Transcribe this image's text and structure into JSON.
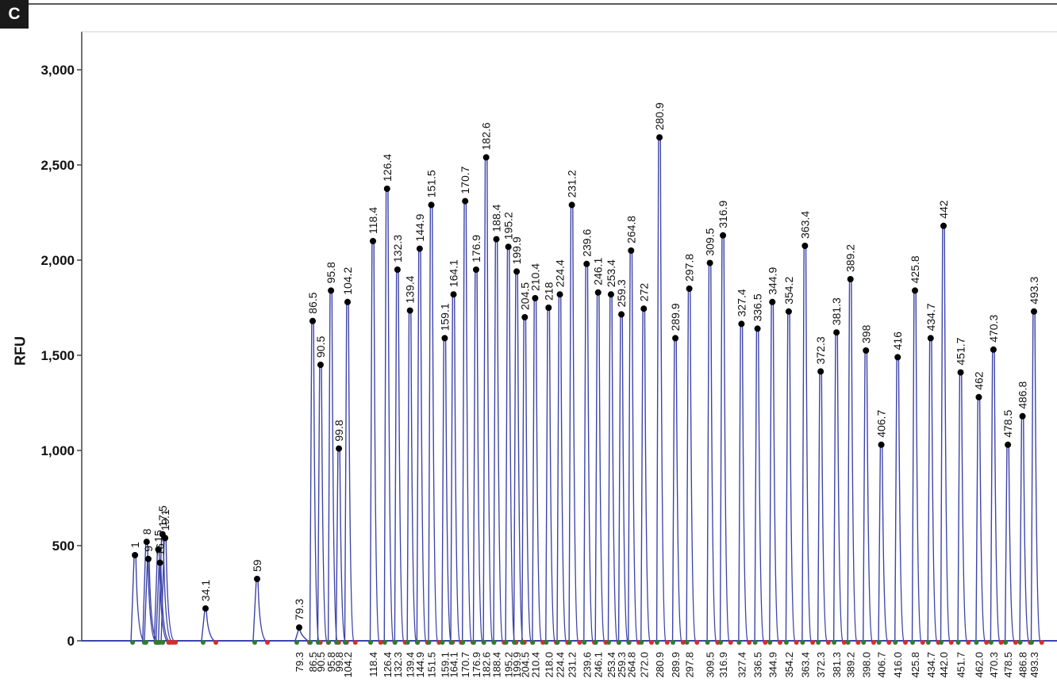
{
  "panel_label": "C",
  "chart_data": {
    "type": "line",
    "ylabel": "RFU",
    "ylim": [
      0,
      3000
    ],
    "yticks": [
      0,
      500,
      1000,
      1500,
      2000,
      2500,
      3000
    ],
    "ytick_labels": [
      "0",
      "500",
      "1,000",
      "1,500",
      "2,000",
      "2,500",
      "3,000"
    ],
    "grid": false,
    "peak_color": "#3d44a8",
    "peaks": [
      {
        "label": "1",
        "x": 1,
        "y": 450
      },
      {
        "label": "8",
        "x": 8,
        "y": 520
      },
      {
        "label": "9",
        "x": 9,
        "y": 430
      },
      {
        "label": "15",
        "x": 15,
        "y": 480
      },
      {
        "label": "16",
        "x": 16,
        "y": 410
      },
      {
        "label": "17.5",
        "x": 17.5,
        "y": 560
      },
      {
        "label": "19.1",
        "x": 19.1,
        "y": 540
      },
      {
        "label": "34.1",
        "x": 34.1,
        "y": 170
      },
      {
        "label": "59",
        "x": 59,
        "y": 325
      },
      {
        "label": "79.3",
        "x": 79.3,
        "y": 70
      },
      {
        "label": "86.5",
        "x": 86.5,
        "y": 1680
      },
      {
        "label": "90.5",
        "x": 90.5,
        "y": 1450
      },
      {
        "label": "95.8",
        "x": 95.8,
        "y": 1840
      },
      {
        "label": "99.8",
        "x": 99.8,
        "y": 1010
      },
      {
        "label": "104.2",
        "x": 104.2,
        "y": 1780
      },
      {
        "label": "118.4",
        "x": 118.4,
        "y": 2100
      },
      {
        "label": "126.4",
        "x": 126.4,
        "y": 2375
      },
      {
        "label": "132.3",
        "x": 132.3,
        "y": 1950
      },
      {
        "label": "139.4",
        "x": 139.4,
        "y": 1735
      },
      {
        "label": "144.9",
        "x": 144.9,
        "y": 2060
      },
      {
        "label": "151.5",
        "x": 151.5,
        "y": 2290
      },
      {
        "label": "159.1",
        "x": 159.1,
        "y": 1590
      },
      {
        "label": "164.1",
        "x": 164.1,
        "y": 1820
      },
      {
        "label": "170.7",
        "x": 170.7,
        "y": 2310
      },
      {
        "label": "176.9",
        "x": 176.9,
        "y": 1950
      },
      {
        "label": "182.6",
        "x": 182.6,
        "y": 2540
      },
      {
        "label": "188.4",
        "x": 188.4,
        "y": 2110
      },
      {
        "label": "195.2",
        "x": 195.2,
        "y": 2070
      },
      {
        "label": "199.9",
        "x": 199.9,
        "y": 1940
      },
      {
        "label": "204.5",
        "x": 204.5,
        "y": 1700
      },
      {
        "label": "210.4",
        "x": 210.4,
        "y": 1800
      },
      {
        "label": "218",
        "x": 218,
        "y": 1750
      },
      {
        "label": "224.4",
        "x": 224.4,
        "y": 1820
      },
      {
        "label": "231.2",
        "x": 231.2,
        "y": 2290
      },
      {
        "label": "239.6",
        "x": 239.6,
        "y": 1980
      },
      {
        "label": "246.1",
        "x": 246.1,
        "y": 1830
      },
      {
        "label": "253.4",
        "x": 253.4,
        "y": 1820
      },
      {
        "label": "259.3",
        "x": 259.3,
        "y": 1715
      },
      {
        "label": "264.8",
        "x": 264.8,
        "y": 2050
      },
      {
        "label": "272",
        "x": 272,
        "y": 1745
      },
      {
        "label": "280.9",
        "x": 280.9,
        "y": 2645
      },
      {
        "label": "289.9",
        "x": 289.9,
        "y": 1590
      },
      {
        "label": "297.8",
        "x": 297.8,
        "y": 1850
      },
      {
        "label": "309.5",
        "x": 309.5,
        "y": 1985
      },
      {
        "label": "316.9",
        "x": 316.9,
        "y": 2130
      },
      {
        "label": "327.4",
        "x": 327.4,
        "y": 1665
      },
      {
        "label": "336.5",
        "x": 336.5,
        "y": 1640
      },
      {
        "label": "344.9",
        "x": 344.9,
        "y": 1780
      },
      {
        "label": "354.2",
        "x": 354.2,
        "y": 1730
      },
      {
        "label": "363.4",
        "x": 363.4,
        "y": 2075
      },
      {
        "label": "372.3",
        "x": 372.3,
        "y": 1415
      },
      {
        "label": "381.3",
        "x": 381.3,
        "y": 1620
      },
      {
        "label": "389.2",
        "x": 389.2,
        "y": 1900
      },
      {
        "label": "398",
        "x": 398,
        "y": 1525
      },
      {
        "label": "406.7",
        "x": 406.7,
        "y": 1030
      },
      {
        "label": "416",
        "x": 416,
        "y": 1490
      },
      {
        "label": "425.8",
        "x": 425.8,
        "y": 1840
      },
      {
        "label": "434.7",
        "x": 434.7,
        "y": 1590
      },
      {
        "label": "442",
        "x": 442,
        "y": 2180
      },
      {
        "label": "451.7",
        "x": 451.7,
        "y": 1410
      },
      {
        "label": "462",
        "x": 462,
        "y": 1280
      },
      {
        "label": "470.3",
        "x": 470.3,
        "y": 1530
      },
      {
        "label": "478.5",
        "x": 478.5,
        "y": 1030
      },
      {
        "label": "486.8",
        "x": 486.8,
        "y": 1180
      },
      {
        "label": "493.3",
        "x": 493.3,
        "y": 1730
      }
    ],
    "x_tick_labels": [
      "79.3",
      "86.5",
      "90.5",
      "95.8",
      "99.8",
      "104.2",
      "118.4",
      "126.4",
      "132.3",
      "139.4",
      "144.9",
      "151.5",
      "159.1",
      "164.1",
      "170.7",
      "176.9",
      "182.6",
      "188.4",
      "195.2",
      "199.9",
      "204.5",
      "210.4",
      "218.0",
      "224.4",
      "231.2",
      "239.6",
      "246.1",
      "253.4",
      "259.3",
      "264.8",
      "272.0",
      "280.9",
      "289.9",
      "297.8",
      "309.5",
      "316.9",
      "327.4",
      "336.5",
      "344.9",
      "354.2",
      "363.4",
      "372.3",
      "381.3",
      "389.2",
      "398.0",
      "406.7",
      "416.0",
      "425.8",
      "434.7",
      "442.0",
      "451.7",
      "462.0",
      "470.3",
      "478.5",
      "486.8",
      "493.3"
    ]
  }
}
